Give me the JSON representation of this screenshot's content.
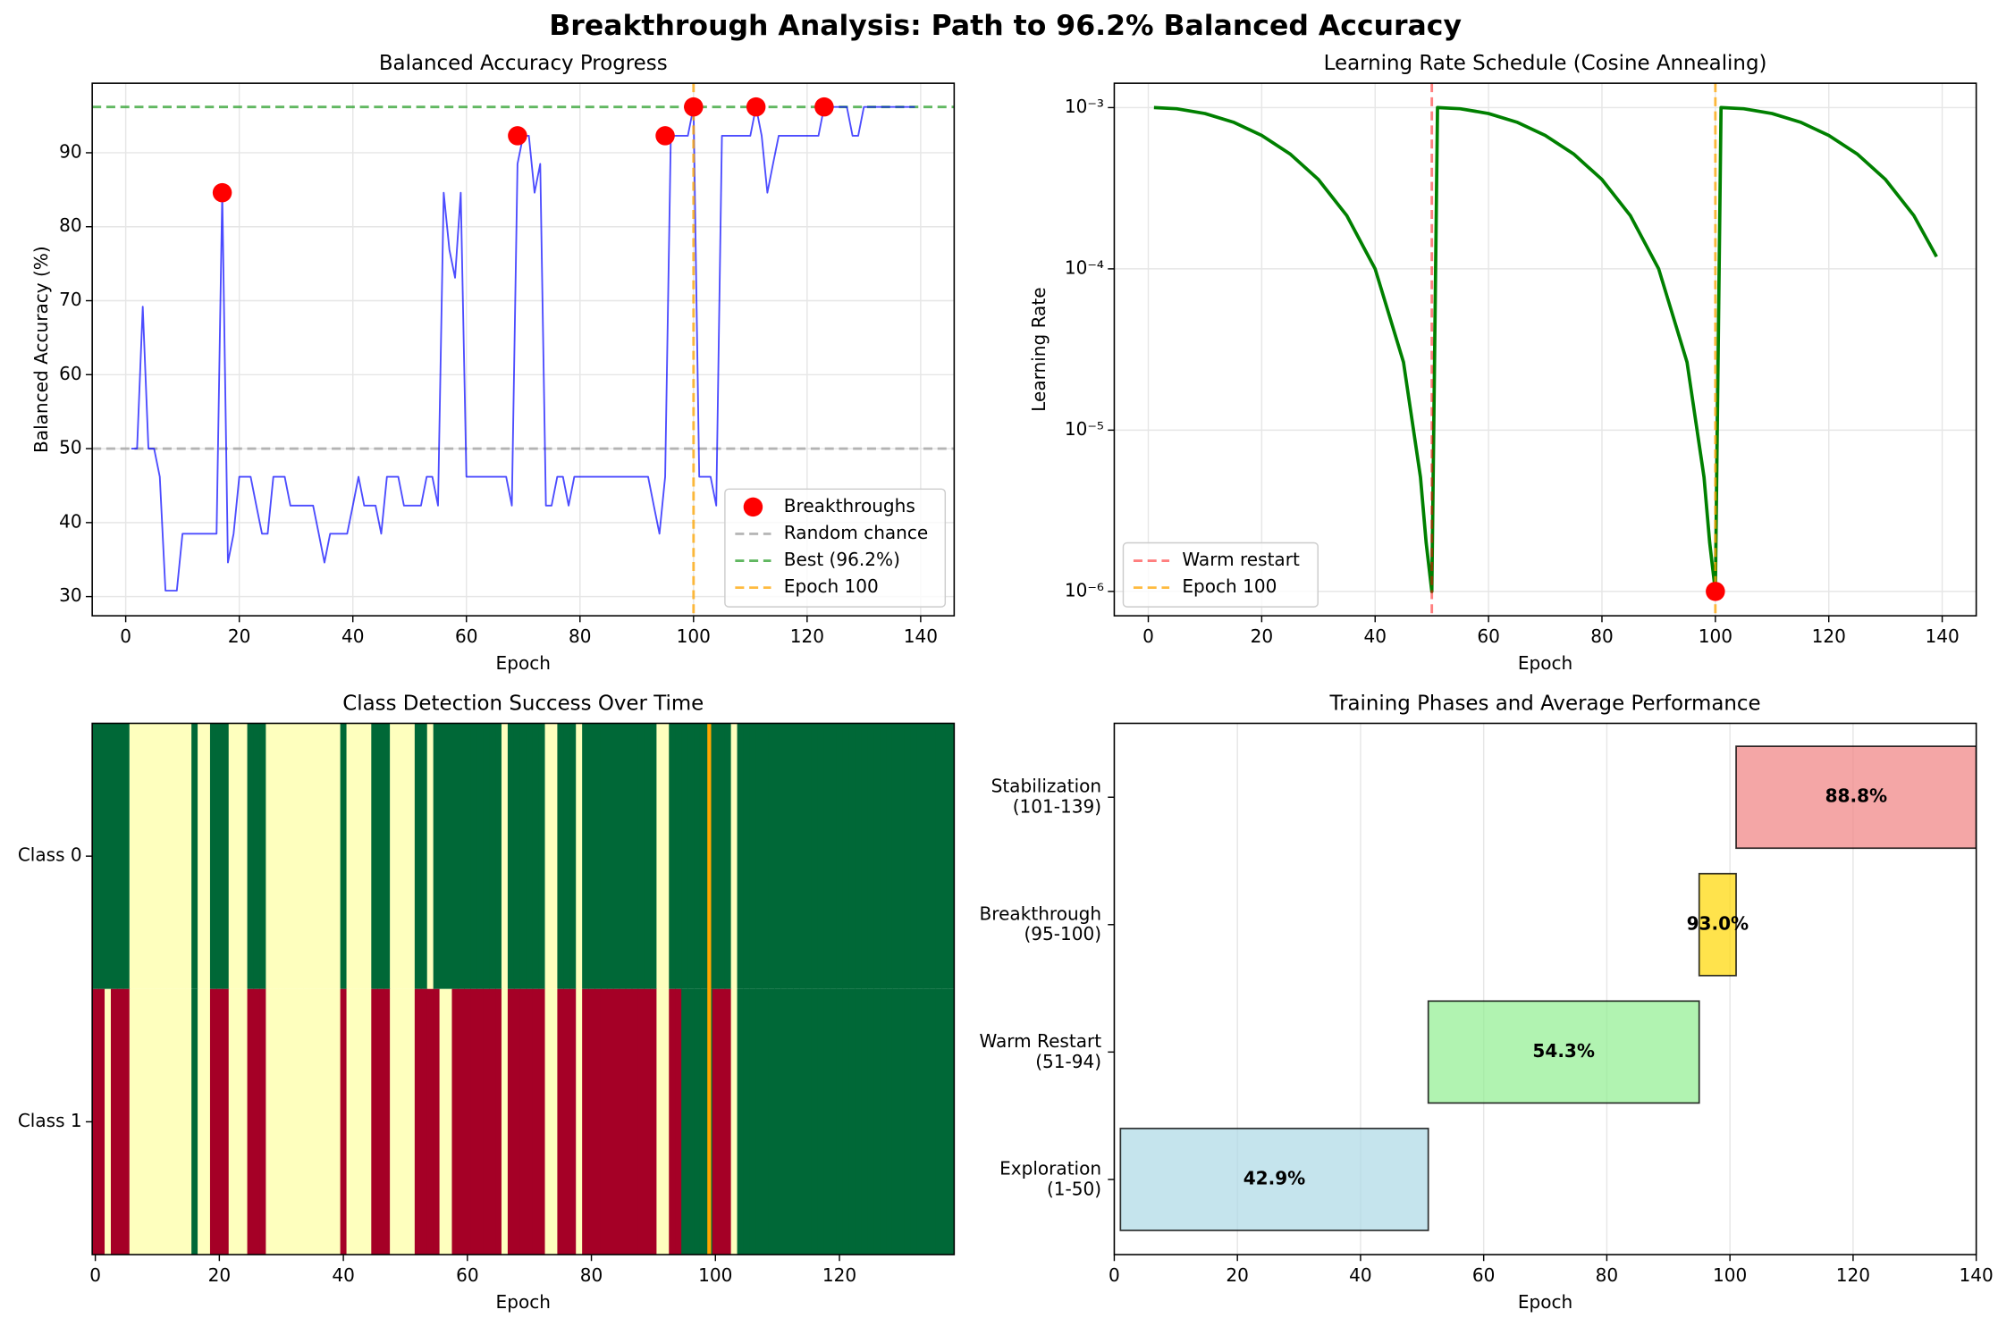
{
  "title": "Breakthrough Analysis: Path to 96.2% Balanced Accuracy",
  "chart_data": [
    {
      "type": "line",
      "title": "Balanced Accuracy Progress",
      "xlabel": "Epoch",
      "ylabel": "Balanced Accuracy (%)",
      "xlim": [
        -5.9,
        145.9
      ],
      "ylim": [
        27.4,
        99.4
      ],
      "xticks": [
        0,
        20,
        40,
        60,
        80,
        100,
        120,
        140
      ],
      "yticks": [
        30,
        40,
        50,
        60,
        70,
        80,
        90
      ],
      "grid": true,
      "legend": "lower right",
      "series": [
        {
          "type": "line",
          "color": "#0000ff",
          "x": [
            1,
            2,
            3,
            4,
            5,
            6,
            7,
            8,
            9,
            10,
            11,
            12,
            13,
            14,
            15,
            16,
            17,
            18,
            19,
            20,
            21,
            22,
            23,
            24,
            25,
            26,
            27,
            28,
            29,
            30,
            31,
            32,
            33,
            34,
            35,
            36,
            37,
            38,
            39,
            40,
            41,
            42,
            43,
            44,
            45,
            46,
            47,
            48,
            49,
            50,
            51,
            52,
            53,
            54,
            55,
            56,
            57,
            58,
            59,
            60,
            61,
            62,
            63,
            64,
            65,
            66,
            67,
            68,
            69,
            70,
            71,
            72,
            73,
            74,
            75,
            76,
            77,
            78,
            79,
            80,
            81,
            82,
            83,
            84,
            85,
            86,
            87,
            88,
            89,
            90,
            91,
            92,
            93,
            94,
            95,
            96,
            97,
            98,
            99,
            100,
            101,
            102,
            103,
            104,
            105,
            106,
            107,
            108,
            109,
            110,
            111,
            112,
            113,
            114,
            115,
            116,
            117,
            118,
            119,
            120,
            121,
            122,
            123,
            124,
            125,
            126,
            127,
            128,
            129,
            130,
            131,
            132,
            133,
            134,
            135,
            136,
            137,
            138,
            139
          ],
          "values": [
            50,
            50,
            69.2,
            50,
            50,
            46.2,
            30.8,
            30.8,
            30.8,
            38.5,
            38.5,
            38.5,
            38.5,
            38.5,
            38.5,
            38.5,
            84.6,
            34.6,
            38.5,
            46.2,
            46.2,
            46.2,
            42.3,
            38.5,
            38.5,
            46.2,
            46.2,
            46.2,
            42.3,
            42.3,
            42.3,
            42.3,
            42.3,
            38.5,
            34.6,
            38.5,
            38.5,
            38.5,
            38.5,
            42.3,
            46.2,
            42.3,
            42.3,
            42.3,
            38.5,
            46.2,
            46.2,
            46.2,
            42.3,
            42.3,
            42.3,
            42.3,
            46.2,
            46.2,
            42.3,
            84.6,
            76.9,
            73.1,
            84.6,
            46.2,
            46.2,
            46.2,
            46.2,
            46.2,
            46.2,
            46.2,
            46.2,
            42.3,
            88.5,
            92.3,
            92.3,
            84.6,
            88.5,
            42.3,
            42.3,
            46.2,
            46.2,
            42.3,
            46.2,
            46.2,
            46.2,
            46.2,
            46.2,
            46.2,
            46.2,
            46.2,
            46.2,
            46.2,
            46.2,
            46.2,
            46.2,
            46.2,
            42.3,
            38.5,
            46.2,
            92.3,
            92.3,
            92.3,
            92.3,
            96.2,
            46.2,
            46.2,
            46.2,
            42.3,
            92.3,
            92.3,
            92.3,
            92.3,
            92.3,
            92.3,
            96.2,
            92.3,
            84.6,
            88.5,
            92.3,
            92.3,
            92.3,
            92.3,
            92.3,
            92.3,
            92.3,
            92.3,
            96.2,
            96.2,
            96.2,
            96.2,
            96.2,
            92.3,
            92.3,
            96.2,
            96.2,
            96.2,
            96.2,
            96.2,
            96.2,
            96.2,
            96.2,
            96.2,
            96.2
          ]
        },
        {
          "type": "scatter",
          "name": "Breakthroughs",
          "color": "#ff0000",
          "x": [
            17,
            69,
            95,
            100,
            111,
            123
          ],
          "values": [
            84.6,
            92.3,
            92.3,
            96.2,
            96.2,
            96.2
          ]
        }
      ],
      "hlines": [
        {
          "name": "Random chance",
          "y": 50,
          "color": "#a0a0a0"
        },
        {
          "name": "Best (96.2%)",
          "y": 96.2,
          "color": "#2ca02c"
        }
      ],
      "vlines": [
        {
          "name": "Epoch 100",
          "x": 100,
          "color": "#ffa500"
        }
      ]
    },
    {
      "type": "line",
      "title": "Learning Rate Schedule (Cosine Annealing)",
      "xlabel": "Epoch",
      "ylabel": "Learning Rate",
      "yscale": "log",
      "xlim": [
        -6,
        146
      ],
      "ylim": [
        7.06e-07,
        0.001416
      ],
      "xticks": [
        0,
        20,
        40,
        60,
        80,
        100,
        120,
        140
      ],
      "yticks": [
        {
          "value": 1e-06,
          "label": "10⁻⁶"
        },
        {
          "value": 1e-05,
          "label": "10⁻⁵"
        },
        {
          "value": 0.0001,
          "label": "10⁻⁴"
        },
        {
          "value": 0.001,
          "label": "10⁻³"
        }
      ],
      "grid": true,
      "legend": "lower left",
      "series": [
        {
          "type": "line",
          "color": "#008000",
          "x": [
            1,
            5,
            10,
            15,
            20,
            25,
            30,
            35,
            40,
            45,
            48,
            49,
            50,
            51,
            55,
            60,
            65,
            70,
            75,
            80,
            85,
            90,
            95,
            98,
            99,
            100,
            101,
            105,
            110,
            115,
            120,
            125,
            130,
            135,
            139
          ],
          "values": [
            0.001,
            0.000984,
            0.000919,
            0.000812,
            0.000672,
            0.000516,
            0.000358,
            0.000214,
            0.0001,
            2.64e-05,
            5.1e-06,
            2e-06,
            1e-06,
            0.001,
            0.000984,
            0.000919,
            0.000812,
            0.000672,
            0.000516,
            0.000358,
            0.000214,
            0.0001,
            2.64e-05,
            5.1e-06,
            2e-06,
            1e-06,
            0.001,
            0.000984,
            0.000919,
            0.000812,
            0.000672,
            0.000516,
            0.000358,
            0.000214,
            0.000119
          ]
        },
        {
          "type": "scatter",
          "color": "#ff0000",
          "x": [
            100
          ],
          "values": [
            1e-06
          ]
        }
      ],
      "vlines": [
        {
          "name": "Warm restart",
          "x": 50,
          "color": "#ff0000"
        },
        {
          "name": "Epoch 100",
          "x": 100,
          "color": "#ffa500"
        }
      ]
    },
    {
      "type": "heatmap",
      "title": "Class Detection Success Over Time",
      "xlabel": "Epoch",
      "xlim": [
        -0.5,
        138.5
      ],
      "xticks": [
        0,
        20,
        40,
        60,
        80,
        100,
        120
      ],
      "rows": [
        "Class 0",
        "Class 1"
      ],
      "colorscale": [
        {
          "value": 0,
          "color": "#a50026"
        },
        {
          "value": 0.5,
          "color": "#feffbe"
        },
        {
          "value": 1,
          "color": "#006837"
        }
      ],
      "matrix": [
        [
          1,
          1,
          1,
          1,
          1,
          1,
          0.5,
          0.5,
          0.5,
          0.5,
          0.5,
          0.5,
          0.5,
          0.5,
          0.5,
          0.5,
          1,
          0.5,
          0.5,
          1,
          1,
          1,
          0.5,
          0.5,
          0.5,
          1,
          1,
          1,
          0.5,
          0.5,
          0.5,
          0.5,
          0.5,
          0.5,
          0.5,
          0.5,
          0.5,
          0.5,
          0.5,
          0.5,
          1,
          0.5,
          0.5,
          0.5,
          0.5,
          1,
          1,
          1,
          0.5,
          0.5,
          0.5,
          0.5,
          1,
          1,
          0.5,
          1,
          1,
          1,
          1,
          1,
          1,
          1,
          1,
          1,
          1,
          1,
          0.5,
          1,
          1,
          1,
          1,
          1,
          1,
          0.5,
          0.5,
          1,
          1,
          1,
          0.5,
          1,
          1,
          1,
          1,
          1,
          1,
          1,
          1,
          1,
          1,
          1,
          1,
          0.5,
          0.5,
          1,
          1,
          1,
          1,
          1,
          1,
          1,
          1,
          1,
          1,
          0.5,
          1,
          1,
          1,
          1,
          1,
          1,
          1,
          1,
          1,
          1,
          1,
          1,
          1,
          1,
          1,
          1,
          1,
          1,
          1,
          1,
          1,
          1,
          1,
          1,
          1,
          1,
          1,
          1,
          1,
          1,
          1,
          1,
          1,
          1,
          1
        ],
        [
          0,
          0,
          0.5,
          0,
          0,
          0,
          0.5,
          0.5,
          0.5,
          0.5,
          0.5,
          0.5,
          0.5,
          0.5,
          0.5,
          0.5,
          1,
          0.5,
          0.5,
          0,
          0,
          0,
          0.5,
          0.5,
          0.5,
          0,
          0,
          0,
          0.5,
          0.5,
          0.5,
          0.5,
          0.5,
          0.5,
          0.5,
          0.5,
          0.5,
          0.5,
          0.5,
          0.5,
          0,
          0.5,
          0.5,
          0.5,
          0.5,
          0,
          0,
          0,
          0.5,
          0.5,
          0.5,
          0.5,
          0,
          0,
          0,
          0,
          0.5,
          0.5,
          0,
          0,
          0,
          0,
          0,
          0,
          0,
          0,
          0.5,
          0,
          0,
          0,
          0,
          0,
          0,
          0.5,
          0.5,
          0,
          0,
          0,
          0.5,
          0,
          0,
          0,
          0,
          0,
          0,
          0,
          0,
          0,
          0,
          0,
          0,
          0.5,
          0.5,
          0,
          0,
          1,
          1,
          1,
          1,
          1,
          0,
          0,
          0,
          0.5,
          1,
          1,
          1,
          1,
          1,
          1,
          1,
          1,
          1,
          1,
          1,
          1,
          1,
          1,
          1,
          1,
          1,
          1,
          1,
          1,
          1,
          1,
          1,
          1,
          1,
          1,
          1,
          1,
          1,
          1,
          1,
          1,
          1,
          1,
          1
        ]
      ],
      "vlines": [
        {
          "x": 99,
          "color": "#ffa500"
        }
      ]
    },
    {
      "type": "bar",
      "orientation": "horizontal",
      "title": "Training Phases and Average Performance",
      "xlabel": "Epoch",
      "xlim": [
        0,
        140
      ],
      "xticks": [
        0,
        20,
        40,
        60,
        80,
        100,
        120,
        140
      ],
      "grid": "x",
      "categories": [
        "Exploration\n(1-50)",
        "Warm Restart\n(51-94)",
        "Breakthrough\n(95-100)",
        "Stabilization\n(101-139)"
      ],
      "series": [
        {
          "starts": [
            1,
            51,
            95,
            101
          ],
          "durations": [
            50,
            44,
            6,
            39
          ],
          "colors": [
            "#add8e6",
            "#90ee90",
            "#ffd700",
            "#f08080"
          ],
          "values": [
            42.9,
            54.3,
            93.0,
            88.8
          ],
          "value_labels": [
            "42.9%",
            "54.3%",
            "93.0%",
            "88.8%"
          ]
        }
      ]
    }
  ]
}
